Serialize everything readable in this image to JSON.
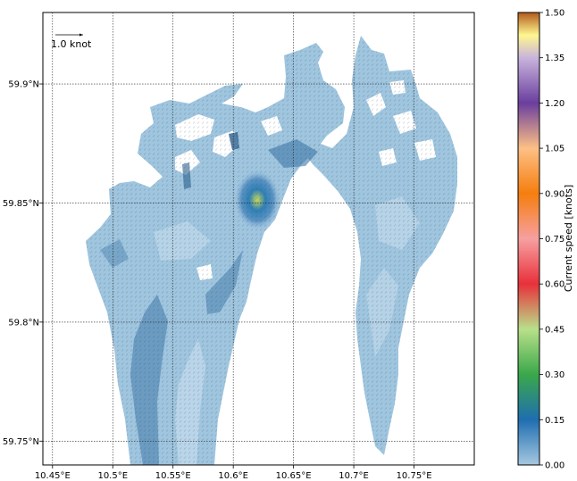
{
  "map": {
    "lon_ticks": [
      "10.45°E",
      "10.5°E",
      "10.55°E",
      "10.6°E",
      "10.65°E",
      "10.7°E",
      "10.75°E"
    ],
    "lat_ticks": [
      "59.9°N",
      "59.85°N",
      "59.8°N",
      "59.75°N"
    ],
    "lon_range": [
      10.442,
      10.8
    ],
    "lat_range": [
      59.74,
      59.93
    ],
    "vector_key_label": "1.0 knot",
    "water_color": "#9fc5df",
    "water_dark": "#3f78a8",
    "water_light": "#c6dcec",
    "hotspot_color": "#c7d85e"
  },
  "colorbar": {
    "label": "Current speed [knots]",
    "ticks": [
      "1.50",
      "1.35",
      "1.20",
      "1.05",
      "0.90",
      "0.75",
      "0.60",
      "0.45",
      "0.30",
      "0.15",
      "0.00"
    ],
    "range": [
      0.0,
      1.5
    ],
    "stops": [
      "#a6c8e0",
      "#1f6eb0",
      "#3aa84a",
      "#b8e08a",
      "#e8303a",
      "#f6a0a0",
      "#f57e0e",
      "#fdc085",
      "#6a3e9e",
      "#c8b4dc",
      "#fff790",
      "#b35a1a"
    ]
  }
}
